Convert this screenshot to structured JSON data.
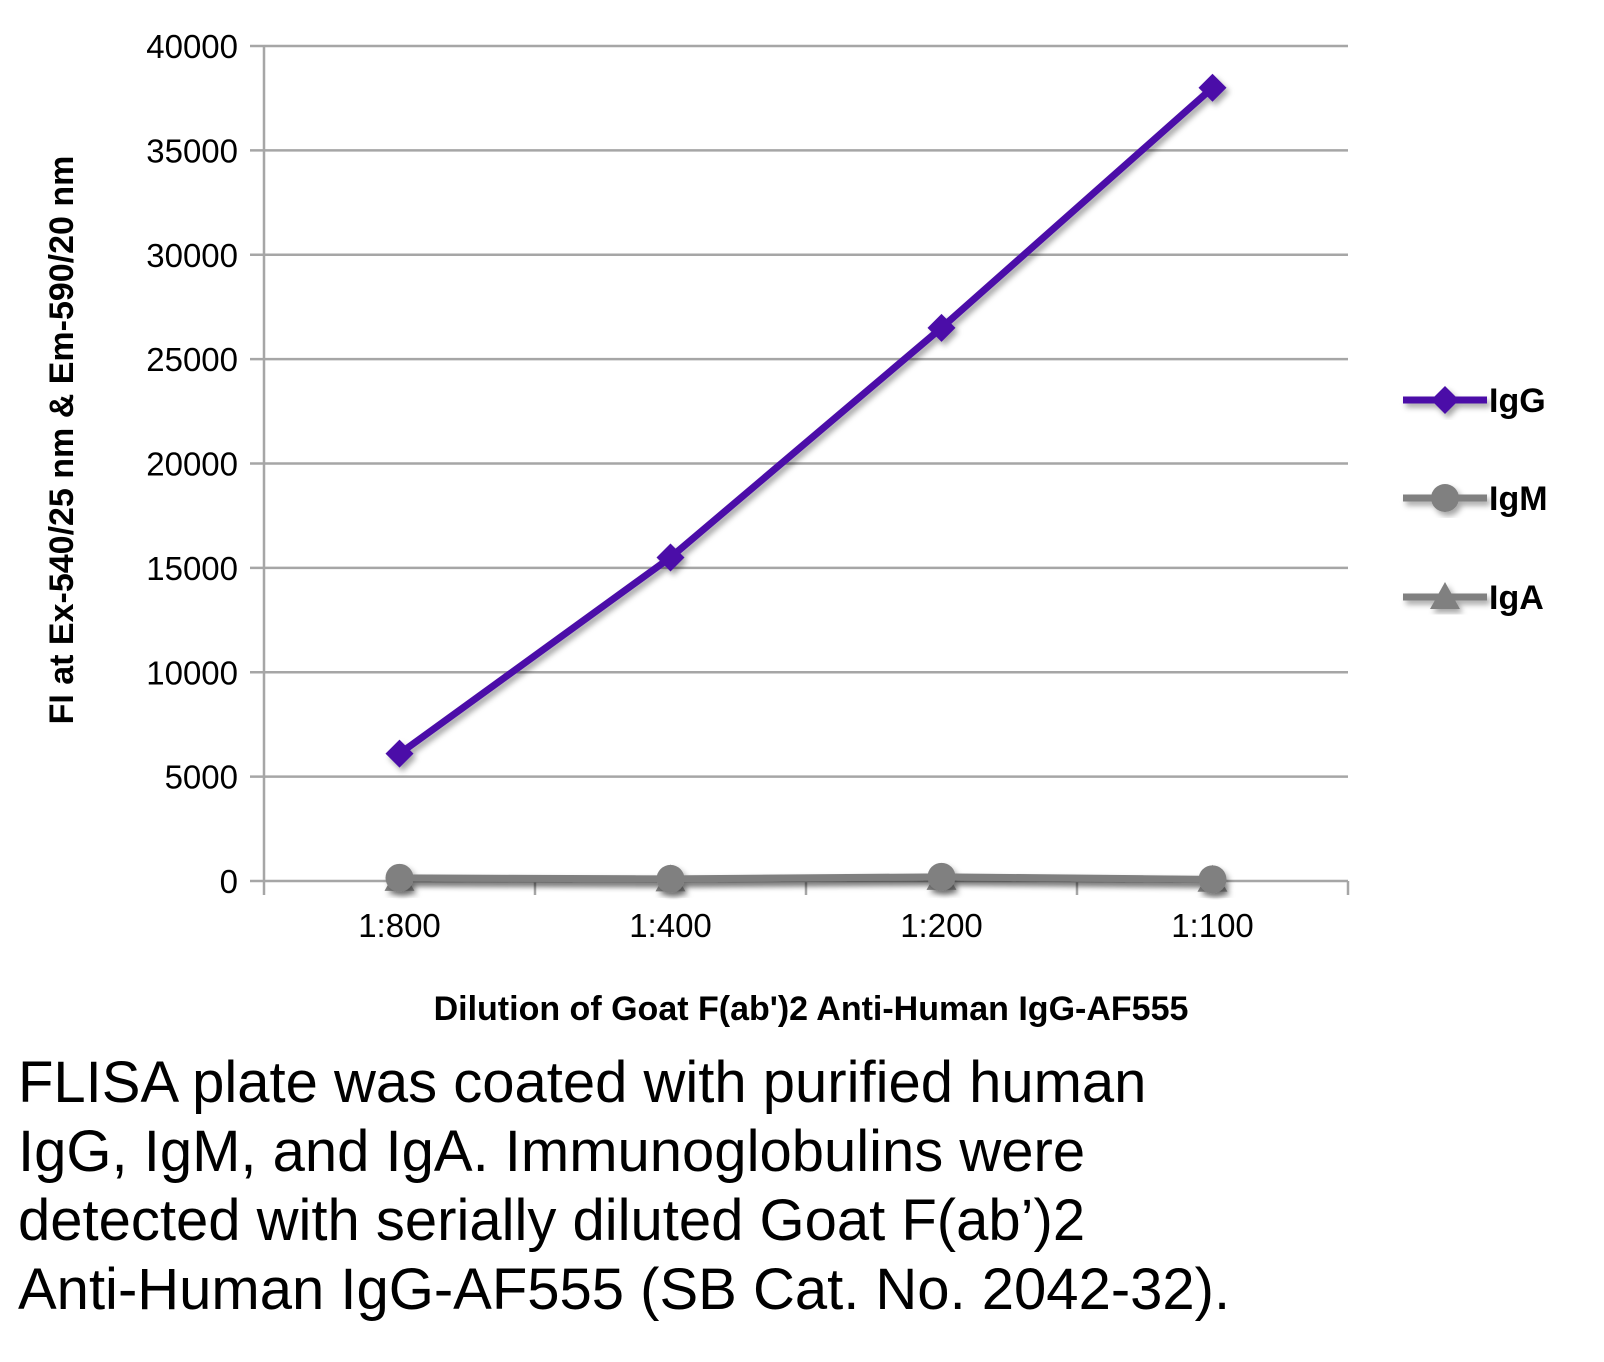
{
  "chart_data": {
    "type": "line",
    "title": "",
    "xlabel": "Dilution of Goat F(ab')2 Anti-Human IgG-AF555",
    "ylabel": "FI at Ex-540/25 nm & Em-590/20 nm",
    "categories": [
      "1:800",
      "1:400",
      "1:200",
      "1:100"
    ],
    "ylim": [
      0,
      40000
    ],
    "yticks": [
      0,
      5000,
      10000,
      15000,
      20000,
      25000,
      30000,
      35000,
      40000
    ],
    "grid": true,
    "legend_position": "right",
    "series": [
      {
        "name": "IgG",
        "values": [
          6100,
          15500,
          26500,
          38000
        ],
        "color": "#4b0fa8",
        "marker": "diamond"
      },
      {
        "name": "IgM",
        "values": [
          150,
          100,
          200,
          80
        ],
        "color": "#808080",
        "marker": "circle"
      },
      {
        "name": "IgA",
        "values": [
          100,
          80,
          150,
          60
        ],
        "color": "#808080",
        "marker": "triangle"
      }
    ]
  },
  "caption": {
    "lines": [
      "FLISA plate was coated with purified human",
      "IgG, IgM, and IgA.  Immunoglobulins were",
      "detected with serially diluted Goat F(ab’)2",
      "Anti-Human IgG-AF555 (SB Cat. No. 2042-32)."
    ]
  }
}
